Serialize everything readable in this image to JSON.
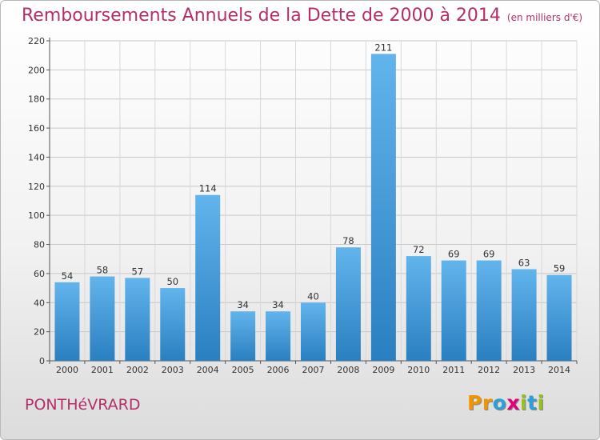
{
  "title": "Remboursements Annuels de la Dette de 2000 à 2014",
  "subtitle": "(en milliers d'€)",
  "commune": "PONTHéVRARD",
  "logo": {
    "text": "Proxiti",
    "letters": [
      {
        "char": "P",
        "color": "#f29400"
      },
      {
        "char": "r",
        "color": "#f29400"
      },
      {
        "char": "o",
        "color": "#2f9fd8"
      },
      {
        "char": "x",
        "color": "#e2007a"
      },
      {
        "char": "i",
        "color": "#95c11f"
      },
      {
        "char": "t",
        "color": "#2f9fd8"
      },
      {
        "char": "i",
        "color": "#95c11f"
      }
    ]
  },
  "chart_data": {
    "type": "bar",
    "categories": [
      "2000",
      "2001",
      "2002",
      "2003",
      "2004",
      "2005",
      "2006",
      "2007",
      "2008",
      "2009",
      "2010",
      "2011",
      "2012",
      "2013",
      "2014"
    ],
    "values": [
      54,
      58,
      57,
      50,
      114,
      34,
      34,
      40,
      78,
      211,
      72,
      69,
      69,
      63,
      59
    ],
    "ylim": [
      0,
      220
    ],
    "yticks": [
      0,
      20,
      40,
      60,
      80,
      100,
      120,
      140,
      160,
      180,
      200,
      220
    ],
    "grid": true,
    "bar_color_top": "#62b4ec",
    "bar_color_bottom": "#2a7fc0",
    "legend": "none"
  }
}
